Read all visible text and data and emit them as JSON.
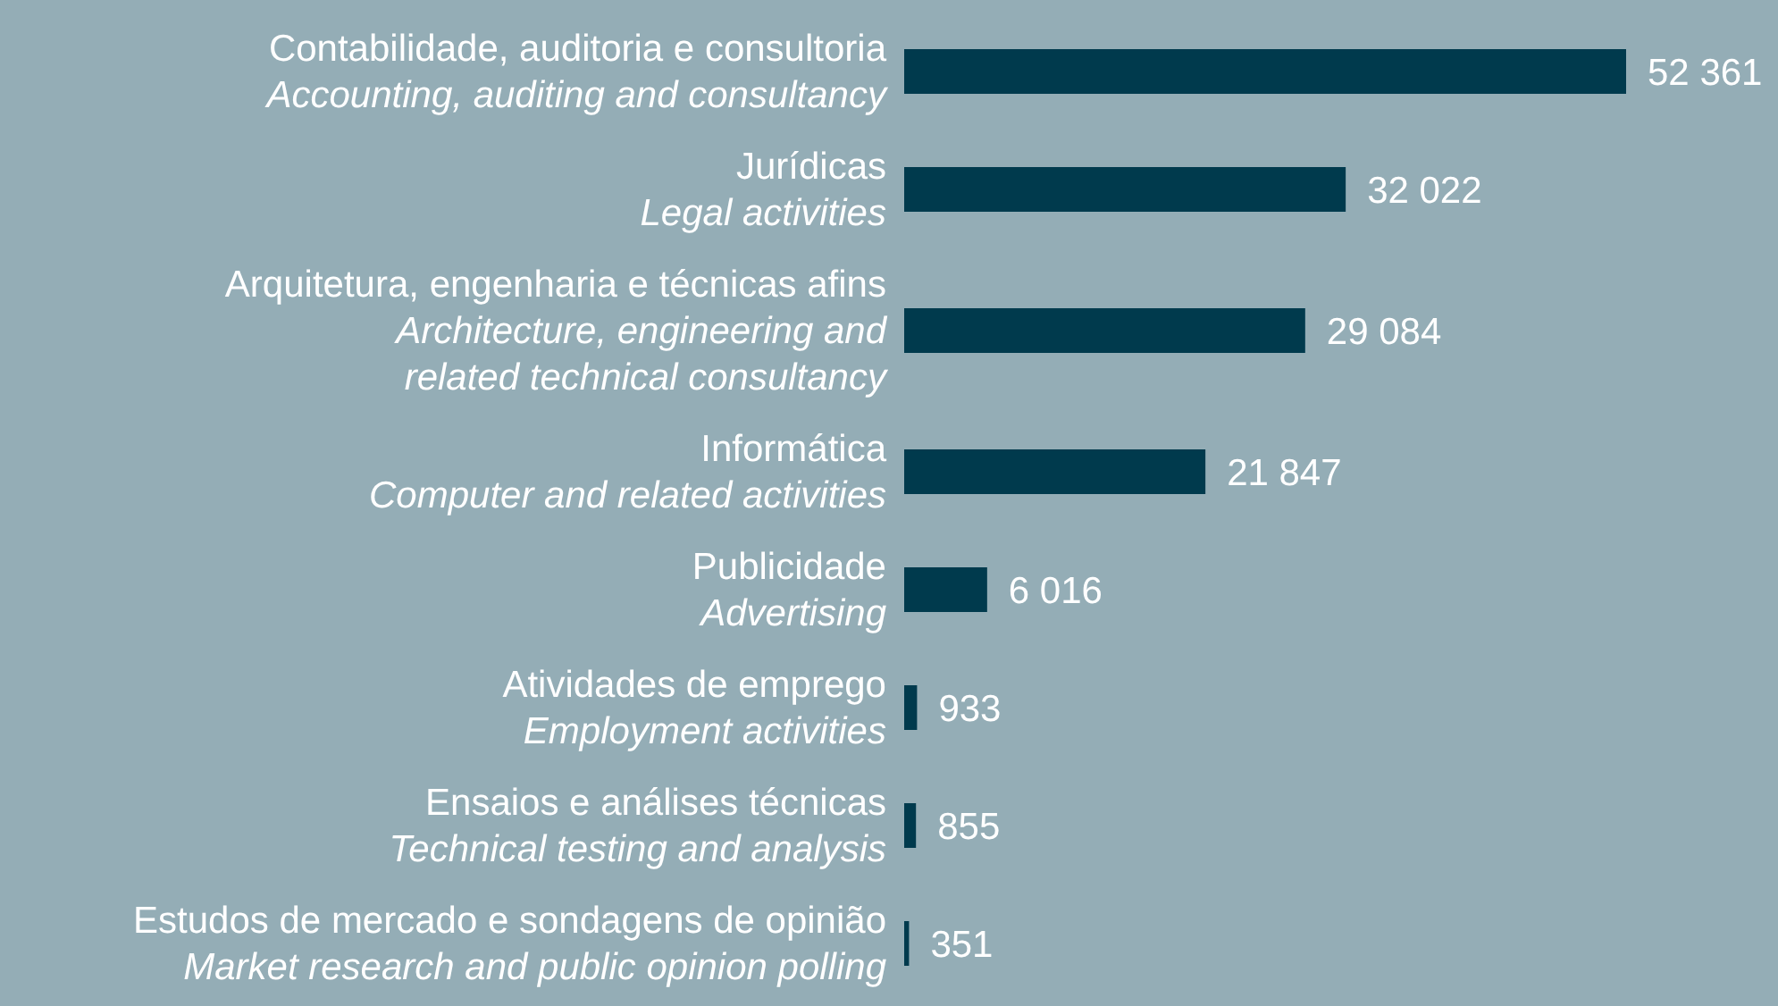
{
  "chart_data": {
    "type": "bar",
    "orientation": "horizontal",
    "categories": [
      "Contabilidade, auditoria e consultoria\nAccounting, auditing and consultancy",
      "Jurídicas\nLegal activities",
      "Arquitetura, engenharia e técnicas afins\nArchitecture, engineering and\nrelated technical consultancy",
      "Informática\nComputer and related activities",
      "Publicidade\nAdvertising",
      "Atividades de emprego\nEmployment activities",
      "Ensaios e análises técnicas\nTechnical testing and analysis",
      "Estudos de mercado e sondagens de opinião\nMarket research and public opinion polling"
    ],
    "values": [
      52361,
      32022,
      29084,
      21847,
      6016,
      933,
      855,
      351
    ],
    "value_labels": [
      "52 361",
      "32 022",
      "29 084",
      "21 847",
      "6 016",
      "933",
      "855",
      "351"
    ],
    "color": "#003a4d"
  }
}
